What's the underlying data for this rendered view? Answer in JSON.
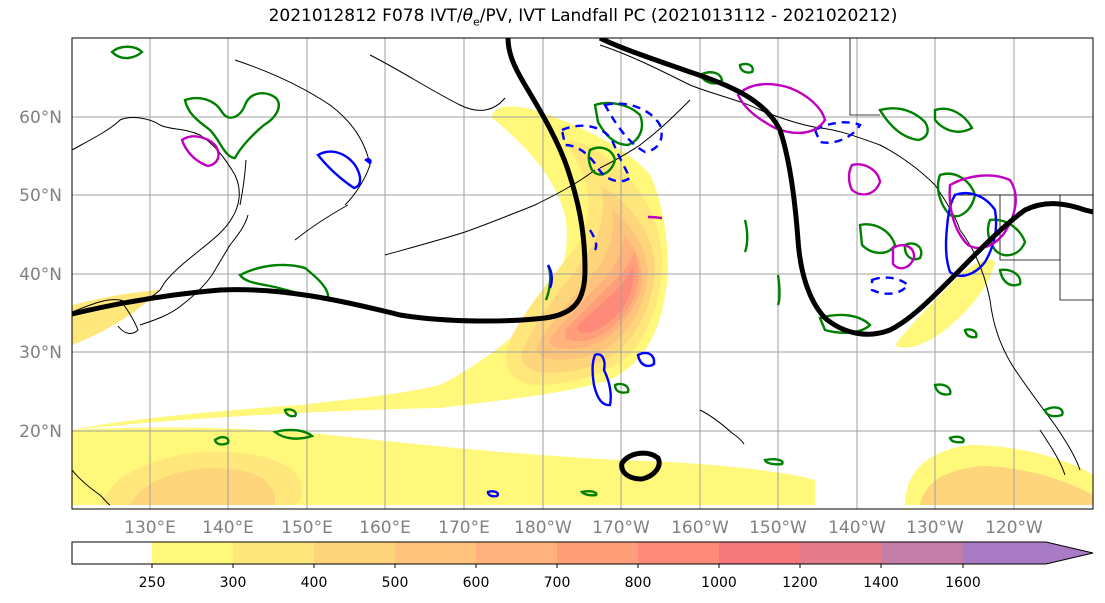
{
  "title": {
    "run": "2021012812",
    "forecast_hour": "F078",
    "fields_prefix": "IVT/",
    "theta_symbol": "θ",
    "theta_sub": "e",
    "fields_suffix": "/PV,",
    "product": "IVT Landfall PC",
    "period": "(2021013112 - 2021020212)"
  },
  "lat_labels": [
    "60°N",
    "50°N",
    "40°N",
    "30°N",
    "20°N"
  ],
  "lon_labels": [
    "130°E",
    "140°E",
    "150°E",
    "160°E",
    "170°E",
    "180°W",
    "170°W",
    "160°W",
    "150°W",
    "140°W",
    "130°W",
    "120°W"
  ],
  "colorbar": {
    "levels": [
      "250",
      "300",
      "400",
      "500",
      "600",
      "700",
      "800",
      "1000",
      "1200",
      "1400",
      "1600"
    ],
    "colors": [
      "#ffffff",
      "#fff87a",
      "#ffe77b",
      "#ffd57b",
      "#ffc47c",
      "#ffb27c",
      "#ff9f79",
      "#ff8a7a",
      "#f5797c",
      "#e47c8c",
      "#c47ea8",
      "#a97bc6"
    ]
  },
  "contour_colors": {
    "anomaly_line": "#000000",
    "theta_e": "#008000",
    "pv_negative": "#0000ff",
    "pv_positive": "#c000c0"
  }
}
